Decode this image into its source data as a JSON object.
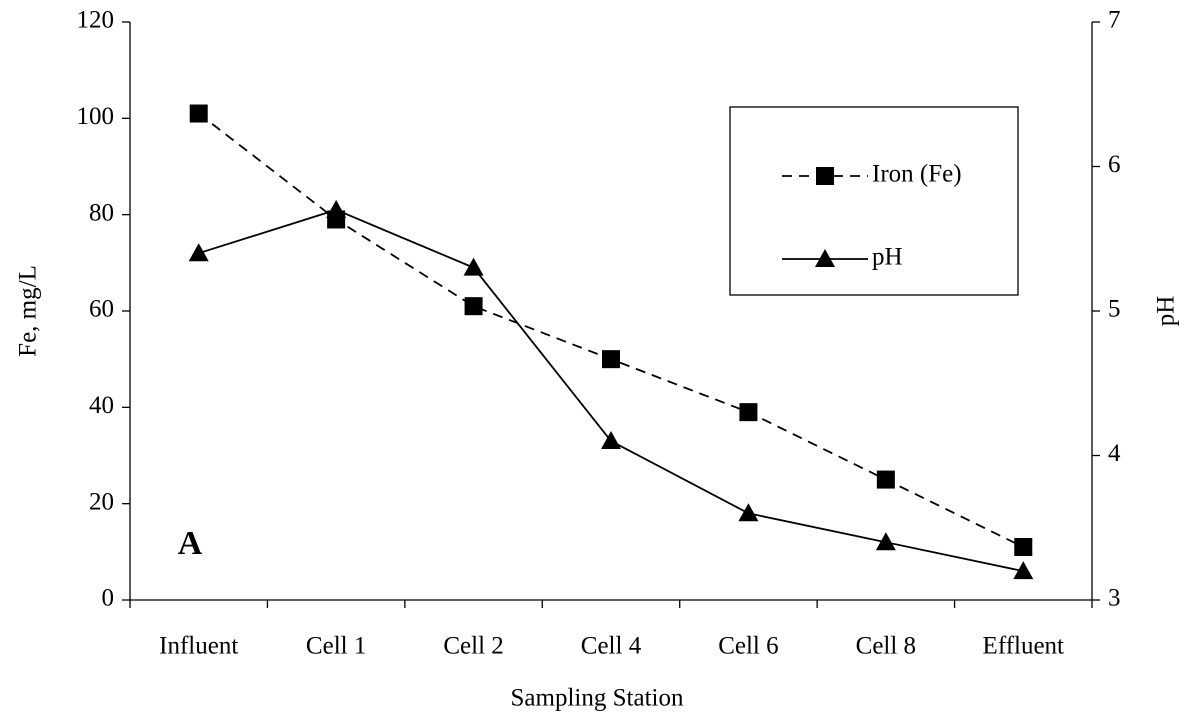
{
  "chart_data": {
    "type": "line",
    "categories": [
      "Influent",
      "Cell 1",
      "Cell 2",
      "Cell 4",
      "Cell 6",
      "Cell 8",
      "Effluent"
    ],
    "series": [
      {
        "name": "Iron (Fe)",
        "color": "#000000",
        "line_style": "dashed",
        "marker": "square",
        "values": [
          101,
          79,
          61,
          50,
          39,
          25,
          11
        ]
      },
      {
        "name": "pH",
        "color": "#000000",
        "line_style": "solid",
        "marker": "triangle",
        "axis": "y2",
        "values": [
          5.4,
          5.7,
          5.3,
          4.1,
          3.6,
          3.4,
          3.2
        ]
      }
    ],
    "xlabel": "Sampling Station",
    "ylabel": "Fe, mg/L",
    "y2label": "pH",
    "ylim": [
      0,
      120
    ],
    "yticks": [
      0,
      20,
      40,
      60,
      80,
      100,
      120
    ],
    "y2lim": [
      3,
      7
    ],
    "y2ticks": [
      3,
      4,
      5,
      6,
      7
    ],
    "annotation": "A",
    "legend": "upper right"
  }
}
